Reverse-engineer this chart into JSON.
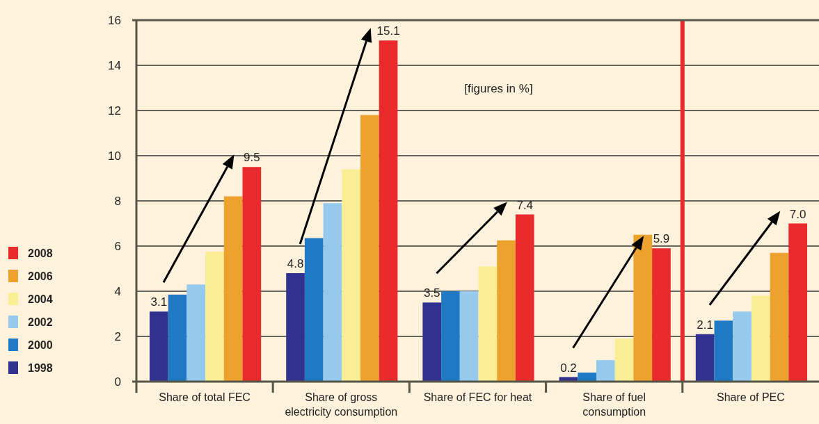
{
  "chart_data": {
    "type": "bar",
    "categories": [
      "Share of total FEC",
      "Share of gross electricity consumption",
      "Share of FEC for heat",
      "Share of fuel consumption",
      "Share of PEC"
    ],
    "series": [
      {
        "name": "1998",
        "color": "#31318f",
        "values": [
          3.1,
          4.8,
          3.5,
          0.2,
          2.1
        ],
        "value_labels": [
          "3.1",
          "4.8",
          "3.5",
          "0.2",
          "2.1"
        ]
      },
      {
        "name": "2000",
        "color": "#2079c2",
        "values": [
          3.85,
          6.35,
          4.0,
          0.4,
          2.7
        ]
      },
      {
        "name": "2002",
        "color": "#95c9ee",
        "values": [
          4.3,
          7.9,
          4.0,
          0.95,
          3.1
        ]
      },
      {
        "name": "2004",
        "color": "#fbed94",
        "values": [
          5.75,
          9.4,
          5.1,
          1.9,
          3.8
        ]
      },
      {
        "name": "2006",
        "color": "#eea22e",
        "values": [
          8.2,
          11.8,
          6.25,
          6.5,
          5.7
        ]
      },
      {
        "name": "2008",
        "color": "#e92b2d",
        "values": [
          9.5,
          15.1,
          7.4,
          5.9,
          7.0
        ],
        "value_labels": [
          "9.5",
          "15.1",
          "7.4",
          "5.9",
          "7.0"
        ]
      }
    ],
    "ylim": [
      0,
      16
    ],
    "yticks": [
      0,
      2,
      4,
      6,
      8,
      10,
      12,
      14,
      16
    ],
    "grid": "y",
    "legend": "left",
    "ref_lines": [
      {
        "axis": "x",
        "value": "Share of PEC",
        "color": "#e92b2d"
      }
    ],
    "annotations": [
      "[figures in %]"
    ]
  }
}
